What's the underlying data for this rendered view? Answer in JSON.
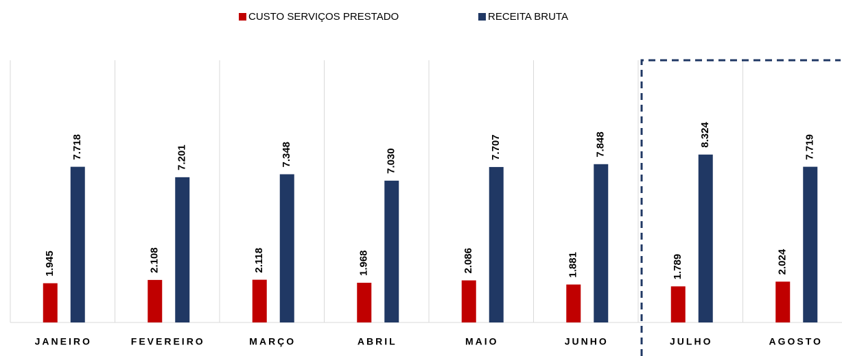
{
  "chart_data": {
    "type": "bar",
    "categories": [
      "JANEIRO",
      "FEVEREIRO",
      "MARÇO",
      "ABRIL",
      "MAIO",
      "JUNHO",
      "JULHO",
      "AGOSTO"
    ],
    "series": [
      {
        "name": "CUSTO SERVIÇOS PRESTADO",
        "color": "#c00000",
        "values": [
          1945,
          2108,
          2118,
          1968,
          2086,
          1881,
          1789,
          2024
        ],
        "value_labels": [
          "1.945",
          "2.108",
          "2.118",
          "1.968",
          "2.086",
          "1.881",
          "1.789",
          "2.024"
        ]
      },
      {
        "name": "RECEITA BRUTA",
        "color": "#203864",
        "values": [
          7718,
          7201,
          7348,
          7030,
          7707,
          7848,
          8324,
          7719
        ],
        "value_labels": [
          "7.718",
          "7.201",
          "7.348",
          "7.030",
          "7.707",
          "7.848",
          "8.324",
          "7.719"
        ]
      }
    ],
    "ylim": [
      0,
      13000
    ]
  }
}
